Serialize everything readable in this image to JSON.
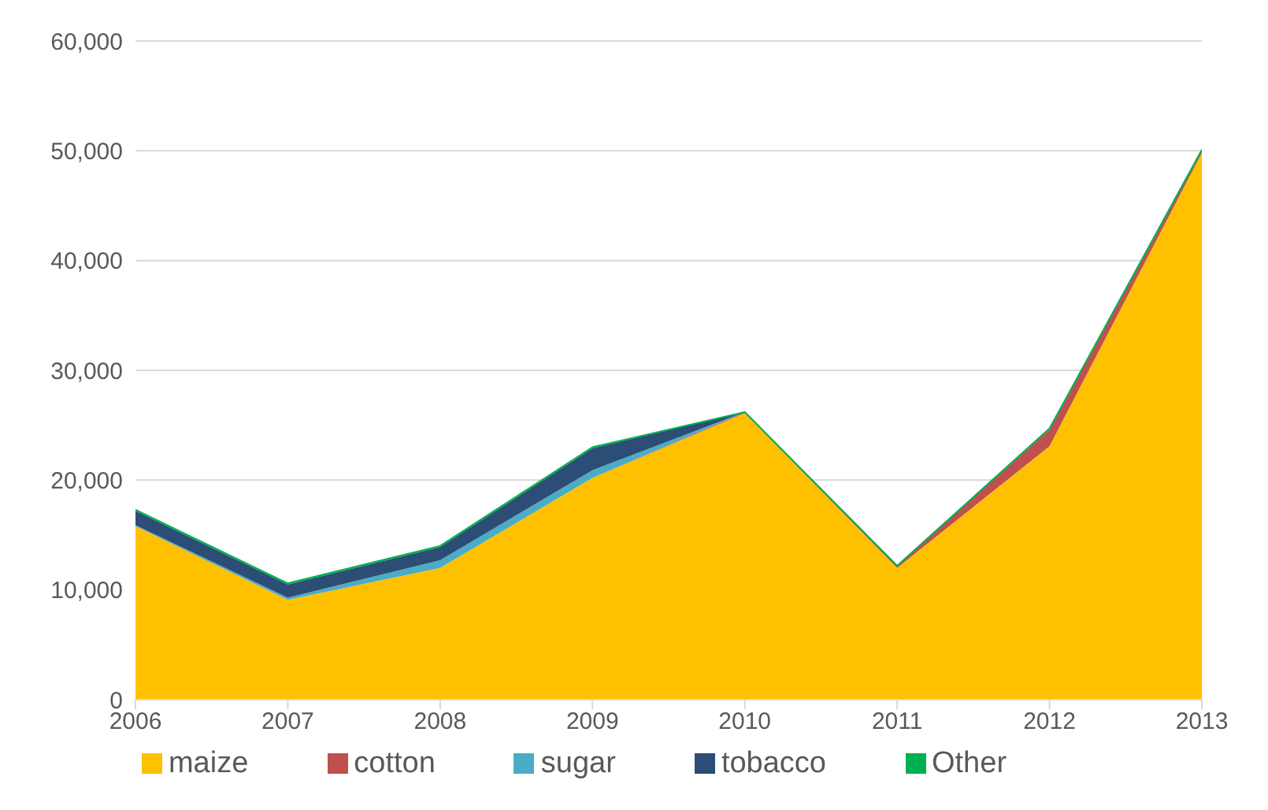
{
  "chart_data": {
    "type": "area",
    "stacked": true,
    "x": [
      2006,
      2007,
      2008,
      2009,
      2010,
      2011,
      2012,
      2013
    ],
    "xlim": [
      2006,
      2013
    ],
    "xticks": [
      2006,
      2007,
      2008,
      2009,
      2010,
      2011,
      2012,
      2013
    ],
    "ylim": [
      0,
      60000
    ],
    "yticks": [
      0,
      {
        "value": 10000,
        "label": "10,000"
      },
      {
        "value": 20000,
        "label": "20,000"
      },
      {
        "value": 30000,
        "label": "30,000"
      },
      {
        "value": 40000,
        "label": "40,000"
      },
      {
        "value": 50000,
        "label": "50,000"
      },
      {
        "value": 60000,
        "label": "60,000"
      }
    ],
    "grid": "y",
    "legend": "bottom",
    "series": [
      {
        "name": "maize",
        "color": "#ffc000",
        "values": [
          15800,
          9100,
          12000,
          20200,
          26100,
          12000,
          23100,
          49800
        ]
      },
      {
        "name": "cotton",
        "color": "#c0504d",
        "values": [
          null,
          null,
          null,
          0,
          100,
          200,
          1500,
          200
        ]
      },
      {
        "name": "sugar",
        "color": "#4bacc6",
        "values": [
          100,
          200,
          700,
          700,
          0,
          null,
          null,
          null
        ]
      },
      {
        "name": "tobacco",
        "color": "#2c4d75",
        "values": [
          1300,
          1200,
          1200,
          2000,
          0,
          null,
          null,
          null
        ]
      },
      {
        "name": "Other",
        "color": "#00b050",
        "values": [
          100,
          100,
          100,
          100,
          0,
          0,
          100,
          100
        ]
      }
    ]
  }
}
